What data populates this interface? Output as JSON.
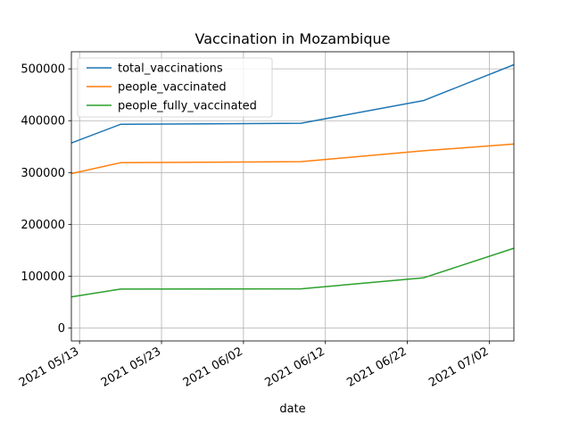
{
  "chart_data": {
    "type": "line",
    "title": "Vaccination in Mozambique",
    "xlabel": "date",
    "ylabel": "",
    "x": [
      "2021-05-12",
      "2021-05-18",
      "2021-06-09",
      "2021-06-24",
      "2021-07-05"
    ],
    "series": [
      {
        "name": "total_vaccinations",
        "color": "#1f77b4",
        "values": [
          357000,
          393000,
          395000,
          439000,
          508000
        ]
      },
      {
        "name": "people_vaccinated",
        "color": "#ff7f0e",
        "values": [
          298000,
          319000,
          321000,
          342000,
          355000
        ]
      },
      {
        "name": "people_fully_vaccinated",
        "color": "#2ca02c",
        "values": [
          60000,
          75000,
          75500,
          97000,
          154000
        ]
      }
    ],
    "xlim": [
      "2021-05-12",
      "2021-07-05"
    ],
    "ylim": [
      -25000,
      533000
    ],
    "xticks": [
      {
        "date": "2021-05-13",
        "label": "2021 05/13"
      },
      {
        "date": "2021-05-23",
        "label": "2021 05/23"
      },
      {
        "date": "2021-06-02",
        "label": "2021 06/02"
      },
      {
        "date": "2021-06-12",
        "label": "2021 06/12"
      },
      {
        "date": "2021-06-22",
        "label": "2021 06/22"
      },
      {
        "date": "2021-07-02",
        "label": "2021 07/02"
      }
    ],
    "yticks": [
      0,
      100000,
      200000,
      300000,
      400000,
      500000
    ],
    "grid": true,
    "legend_position": "top-left"
  }
}
